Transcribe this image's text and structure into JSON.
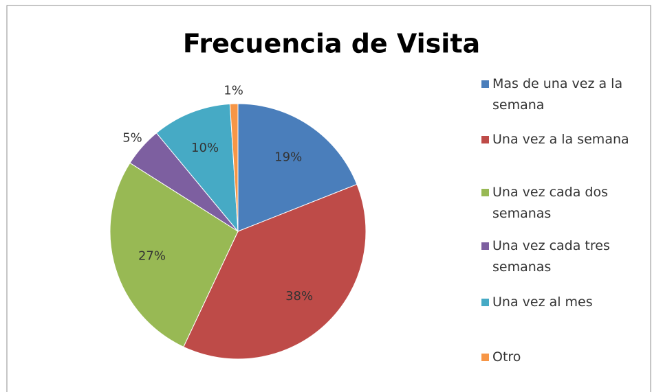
{
  "chart_data": {
    "type": "pie",
    "title": "Frecuencia de Visita",
    "categories": [
      "Mas de una vez a la semana",
      "Una vez a la semana",
      "Una vez cada dos semanas",
      "Una vez cada tres semanas",
      "Una vez al mes",
      "Otro"
    ],
    "values": [
      19,
      38,
      27,
      5,
      10,
      1
    ],
    "value_labels": [
      "19%",
      "38%",
      "27%",
      "5%",
      "10%",
      "1%"
    ],
    "colors": [
      "#4a7ebb",
      "#be4b48",
      "#98b954",
      "#7d5fa0",
      "#46aac5",
      "#f79646"
    ],
    "legend": "right"
  }
}
